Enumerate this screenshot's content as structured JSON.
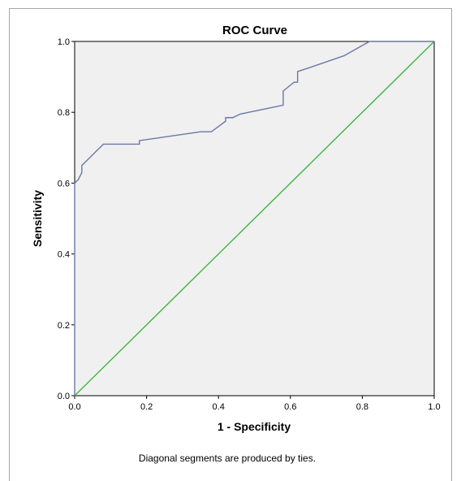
{
  "chart_data": {
    "type": "line",
    "title": "ROC Curve",
    "xlabel": "1 - Specificity",
    "ylabel": "Sensitivity",
    "xlim": [
      0.0,
      1.0
    ],
    "ylim": [
      0.0,
      1.0
    ],
    "x_ticks": [
      "0.0",
      "0.2",
      "0.4",
      "0.6",
      "0.8",
      "1.0"
    ],
    "y_ticks": [
      "0.0",
      "0.2",
      "0.4",
      "0.6",
      "0.8",
      "1.0"
    ],
    "grid": false,
    "footnote": "Diagonal segments are produced by ties.",
    "colors": {
      "plot_background": "#f0f0f0",
      "roc_curve": "#6b78a8",
      "reference_line": "#3cb43c"
    },
    "series": [
      {
        "x": [
          0.0,
          0.0,
          0.01,
          0.02,
          0.02,
          0.04,
          0.06,
          0.08,
          0.18,
          0.18,
          0.35,
          0.38,
          0.4,
          0.42,
          0.42,
          0.44,
          0.46,
          0.58,
          0.58,
          0.61,
          0.62,
          0.62,
          0.65,
          0.75,
          0.82,
          1.0
        ],
        "y": [
          0.0,
          0.6,
          0.61,
          0.63,
          0.65,
          0.67,
          0.69,
          0.71,
          0.71,
          0.72,
          0.745,
          0.745,
          0.76,
          0.775,
          0.785,
          0.785,
          0.795,
          0.82,
          0.86,
          0.885,
          0.885,
          0.915,
          0.925,
          0.96,
          1.0,
          1.0
        ]
      },
      {
        "x": [
          0.0,
          1.0
        ],
        "y": [
          0.0,
          1.0
        ]
      }
    ]
  }
}
